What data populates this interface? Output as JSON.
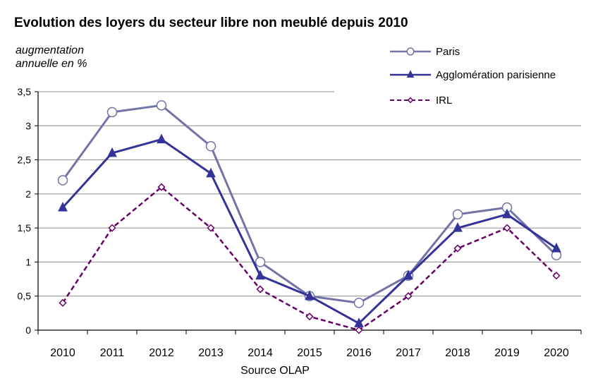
{
  "chart_data": {
    "type": "line",
    "title": "Evolution des loyers du secteur  libre non meublé depuis 2010",
    "ylabel_line1": "augmentation",
    "ylabel_line2": "annuelle en %",
    "source": "Source OLAP",
    "x": [
      "2010",
      "2011",
      "2012",
      "2013",
      "2014",
      "2015",
      "2016",
      "2017",
      "2018",
      "2019",
      "2020"
    ],
    "yticks": [
      "0",
      "0,5",
      "1",
      "1,5",
      "2",
      "2,5",
      "3",
      "3,5"
    ],
    "ylim": [
      0,
      3.5
    ],
    "grid": true,
    "legend_position": "top-right",
    "series": [
      {
        "name": "Paris",
        "color": "#7373a8",
        "marker": "circle",
        "dashed": false,
        "values": [
          2.2,
          3.2,
          3.3,
          2.7,
          1.0,
          0.5,
          0.4,
          0.8,
          1.7,
          1.8,
          1.1
        ]
      },
      {
        "name": "Agglomération parisienne",
        "color": "#333399",
        "marker": "triangle",
        "dashed": false,
        "values": [
          1.8,
          2.6,
          2.8,
          2.3,
          0.8,
          0.5,
          0.1,
          0.8,
          1.5,
          1.7,
          1.2
        ]
      },
      {
        "name": "IRL",
        "color": "#660066",
        "marker": "diamond",
        "dashed": true,
        "values": [
          0.4,
          1.5,
          2.1,
          1.5,
          0.6,
          0.2,
          0.0,
          0.5,
          1.2,
          1.5,
          0.8
        ]
      }
    ]
  }
}
